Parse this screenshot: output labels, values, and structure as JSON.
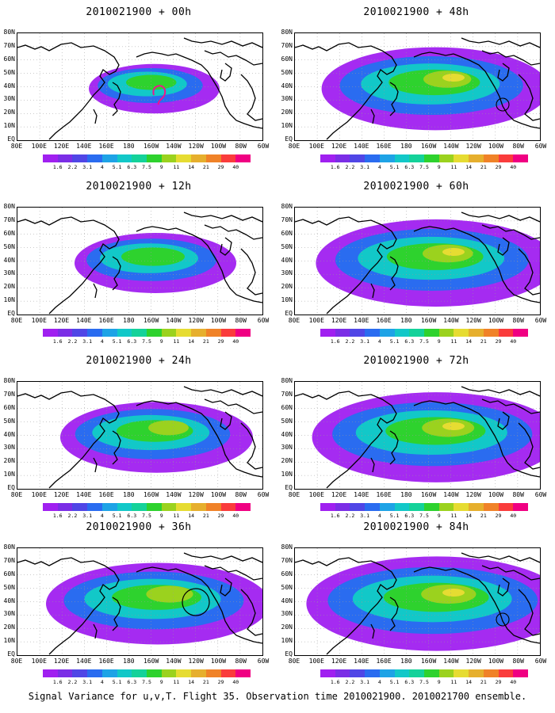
{
  "caption": "Signal Variance for u,v,T. Flight 35. Observation time 2010021900. 2010021700 ensemble.",
  "panels": [
    {
      "title": "2010021900 + 00h",
      "intensity": 0.25,
      "extent": "small",
      "marker": "magenta-swirl"
    },
    {
      "title": "2010021900 + 12h",
      "intensity": 0.4,
      "extent": "small-medium",
      "marker": ""
    },
    {
      "title": "2010021900 + 24h",
      "intensity": 0.55,
      "extent": "medium",
      "marker": ""
    },
    {
      "title": "2010021900 + 36h",
      "intensity": 0.7,
      "extent": "large",
      "marker": "black-circle"
    },
    {
      "title": "2010021900 + 48h",
      "intensity": 0.72,
      "extent": "large",
      "marker": "black-circle-small"
    },
    {
      "title": "2010021900 + 60h",
      "intensity": 0.78,
      "extent": "very-large",
      "marker": ""
    },
    {
      "title": "2010021900 + 72h",
      "intensity": 0.82,
      "extent": "very-large",
      "marker": ""
    },
    {
      "title": "2010021900 + 84h",
      "intensity": 0.88,
      "extent": "very-large",
      "marker": "black-circle-small"
    }
  ],
  "lat_labels": [
    "80N",
    "70N",
    "60N",
    "50N",
    "40N",
    "30N",
    "20N",
    "10N",
    "EQ"
  ],
  "lon_labels": [
    "80E",
    "100E",
    "120E",
    "140E",
    "160E",
    "180",
    "160W",
    "140W",
    "120W",
    "100W",
    "80W",
    "60W"
  ],
  "colorbar": {
    "labels": [
      "1.6",
      "2.2",
      "3.1",
      "4",
      "5.1",
      "6.3",
      "7.5",
      "9",
      "11",
      "14",
      "21",
      "29",
      "40"
    ],
    "colors": [
      "#a020f0",
      "#7b2ee6",
      "#5046e6",
      "#2a6cf0",
      "#1ea3e6",
      "#12c8c8",
      "#14d29a",
      "#2ed22e",
      "#9bd21e",
      "#e6dc32",
      "#e6af2d",
      "#f08228",
      "#fa3c3c",
      "#f00082"
    ]
  }
}
